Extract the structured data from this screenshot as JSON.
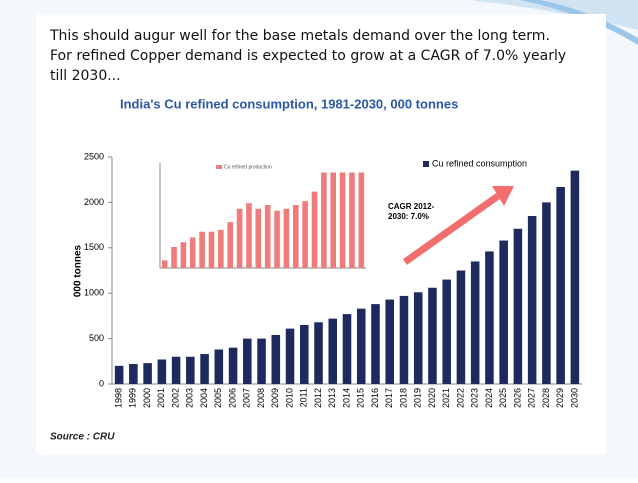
{
  "header": {
    "lines": [
      "This should augur well for the base metals demand over the long term.",
      "For refined Copper demand is expected to grow at a CAGR of 7.0% yearly",
      "till 2030..."
    ]
  },
  "source": "Source : CRU",
  "chart_data": [
    {
      "type": "bar",
      "title": "India's Cu refined consumption, 1981-2030, 000 tonnes",
      "y_label": "000 tonnes",
      "categories": [
        "1998",
        "1999",
        "2000",
        "2001",
        "2002",
        "2003",
        "2004",
        "2005",
        "2006",
        "2007",
        "2008",
        "2009",
        "2010",
        "2011",
        "2012",
        "2013",
        "2014",
        "2015",
        "2016",
        "2017",
        "2018",
        "2019",
        "2020",
        "2021",
        "2022",
        "2023",
        "2024",
        "2025",
        "2026",
        "2027",
        "2028",
        "2029",
        "2030"
      ],
      "series": [
        {
          "name": "Cu refined consumption",
          "color": "#1c2a5e",
          "values": [
            200,
            220,
            230,
            270,
            300,
            300,
            330,
            380,
            400,
            500,
            500,
            540,
            610,
            650,
            680,
            720,
            770,
            830,
            880,
            930,
            970,
            1010,
            1060,
            1150,
            1250,
            1350,
            1460,
            1580,
            1710,
            1850,
            2000,
            2170,
            2350
          ]
        }
      ],
      "ylim": [
        0,
        2500
      ],
      "yticks": [
        0,
        500,
        1000,
        1500,
        2000,
        2500
      ],
      "annotation": [
        "CAGR 2012-",
        "2030: 7.0%"
      ],
      "legend": "top-right"
    },
    {
      "type": "bar",
      "categories": [
        null,
        null,
        null,
        null,
        null,
        null,
        null,
        null,
        null,
        null,
        null,
        null,
        null,
        null,
        null,
        null,
        null,
        null,
        null,
        null,
        null,
        null
      ],
      "series": [
        {
          "name": "Cu refined production",
          "color": "#ef7b7b",
          "values": [
            8,
            22,
            27,
            32,
            38,
            38,
            40,
            48,
            62,
            68,
            62,
            66,
            60,
            62,
            66,
            70,
            80,
            100,
            100,
            100,
            100,
            100
          ]
        }
      ],
      "ylim": [
        0,
        110
      ]
    }
  ]
}
